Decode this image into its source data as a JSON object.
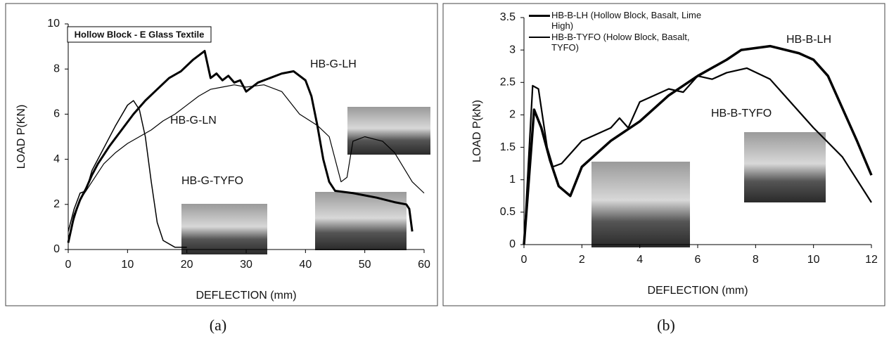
{
  "chart_data": [
    {
      "type": "line",
      "title": "Hollow Block - E Glass Textile",
      "caption": "(a)",
      "x_label": "DEFLECTION (mm)",
      "y_label": "LOAD P(KN)",
      "xlim": [
        0,
        60
      ],
      "ylim": [
        0,
        10
      ],
      "xticks": [
        0,
        10,
        20,
        30,
        40,
        50,
        60
      ],
      "yticks": [
        0,
        2,
        4,
        6,
        8,
        10
      ],
      "legend": false,
      "series": [
        {
          "name": "HB-G-LH",
          "color": "#000000",
          "linewidth": 3,
          "x": [
            0,
            1,
            2,
            3,
            4,
            5,
            7,
            9,
            11,
            13,
            15,
            17,
            19,
            21,
            23,
            24,
            25,
            26,
            27,
            28,
            29,
            30,
            32,
            34,
            36,
            38,
            40,
            41,
            42,
            43,
            44,
            45,
            48,
            52,
            55,
            57,
            57.5,
            58
          ],
          "values": [
            0.3,
            1.5,
            2.2,
            2.7,
            3.3,
            3.8,
            4.6,
            5.3,
            6.0,
            6.6,
            7.1,
            7.6,
            7.9,
            8.4,
            8.8,
            7.6,
            7.8,
            7.5,
            7.7,
            7.4,
            7.5,
            7.0,
            7.4,
            7.6,
            7.8,
            7.9,
            7.5,
            6.8,
            5.5,
            4.0,
            3.0,
            2.6,
            2.5,
            2.3,
            2.1,
            2.0,
            1.8,
            0.8
          ]
        },
        {
          "name": "HB-G-LN",
          "color": "#000000",
          "linewidth": 1.2,
          "x": [
            0,
            2,
            4,
            6,
            8,
            10,
            12,
            14,
            16,
            18,
            20,
            22,
            24,
            26,
            28,
            30,
            33,
            36,
            39,
            42,
            44,
            45,
            46,
            47,
            48,
            50,
            53,
            55,
            58,
            60
          ],
          "values": [
            0.5,
            2.2,
            3.0,
            3.8,
            4.3,
            4.7,
            5.0,
            5.3,
            5.7,
            6.0,
            6.4,
            6.8,
            7.1,
            7.2,
            7.3,
            7.2,
            7.3,
            7.0,
            6.0,
            5.5,
            5.0,
            4.0,
            3.0,
            3.2,
            4.8,
            5.0,
            4.8,
            4.3,
            3.0,
            2.5
          ]
        },
        {
          "name": "HB-G-TYFO",
          "color": "#000000",
          "linewidth": 1.5,
          "x": [
            0,
            1,
            2,
            3,
            4,
            6,
            8,
            10,
            11,
            12,
            13,
            14,
            15,
            16,
            18,
            20
          ],
          "values": [
            0.8,
            1.8,
            2.5,
            2.6,
            3.5,
            4.5,
            5.5,
            6.4,
            6.6,
            6.2,
            5.0,
            3.0,
            1.2,
            0.4,
            0.1,
            0.1
          ]
        }
      ]
    },
    {
      "type": "line",
      "caption": "(b)",
      "x_label": "DEFLECTION (mm)",
      "y_label": "LOAD P(kN)",
      "xlim": [
        0,
        12
      ],
      "ylim": [
        0,
        3.5
      ],
      "xticks": [
        0,
        2,
        4,
        6,
        8,
        10,
        12
      ],
      "yticks": [
        0,
        0.5,
        1,
        1.5,
        2,
        2.5,
        3,
        3.5
      ],
      "legend": true,
      "annotations": [
        "HB-B-LH",
        "HB-B-TYFO"
      ],
      "series": [
        {
          "name": "HB-B-LH (Hollow Block, Basalt, Lime High)",
          "color": "#000000",
          "linewidth": 3.5,
          "x": [
            0,
            0.35,
            0.6,
            0.9,
            1.2,
            1.6,
            2,
            3,
            4,
            5,
            6,
            7,
            7.5,
            8.5,
            9.5,
            10,
            10.5,
            11,
            11.5,
            12
          ],
          "values": [
            0,
            2.08,
            1.8,
            1.3,
            0.9,
            0.75,
            1.2,
            1.6,
            1.9,
            2.3,
            2.6,
            2.85,
            3.0,
            3.06,
            2.95,
            2.85,
            2.6,
            2.1,
            1.6,
            1.07
          ]
        },
        {
          "name": "HB-B-TYFO (Holow Block, Basalt, TYFO)",
          "color": "#000000",
          "linewidth": 2.2,
          "x": [
            0,
            0.3,
            0.5,
            0.8,
            1,
            1.3,
            2,
            3,
            3.3,
            3.6,
            4,
            5,
            5.5,
            6,
            6.5,
            7,
            7.7,
            8.5,
            9,
            10,
            11,
            12
          ],
          "values": [
            0,
            2.45,
            2.4,
            1.5,
            1.2,
            1.25,
            1.6,
            1.8,
            1.95,
            1.8,
            2.2,
            2.4,
            2.35,
            2.6,
            2.55,
            2.65,
            2.72,
            2.55,
            2.3,
            1.8,
            1.35,
            0.65
          ]
        }
      ]
    }
  ]
}
